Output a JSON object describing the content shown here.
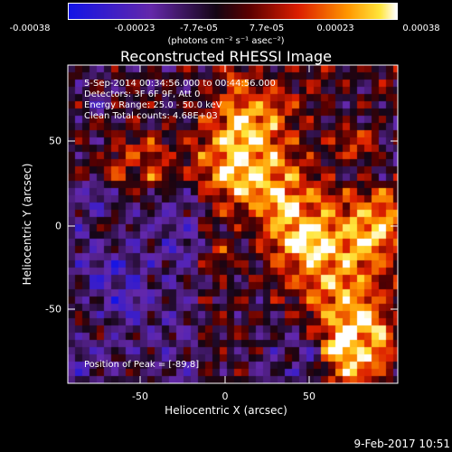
{
  "colorbar": {
    "ticks": [
      "-0.00038",
      "-0.00023",
      "-7.7e-05",
      "7.7e-05",
      "0.00023",
      "0.00038"
    ],
    "unit": "(photons cm⁻² s⁻¹ asec⁻²)"
  },
  "title": "Reconstructed RHESSI Image",
  "info": {
    "line1": "5-Sep-2014 00:34:56.000 to 00:44:56.000",
    "line2": "Detectors: 3F 6F 9F, Att 0",
    "line3": "Energy Range: 25.0 - 50.0 keV",
    "line4": "Clean      Total counts: 4.68E+03",
    "peak": "Position of Peak = [-89,8]"
  },
  "axes": {
    "xlabel": "Heliocentric X (arcsec)",
    "ylabel": "Heliocentric Y (arcsec)",
    "xticks": [
      "-50",
      "0",
      "50"
    ],
    "yticks": [
      "50",
      "0",
      "-50"
    ]
  },
  "timestamp": "9-Feb-2017 10:51"
}
